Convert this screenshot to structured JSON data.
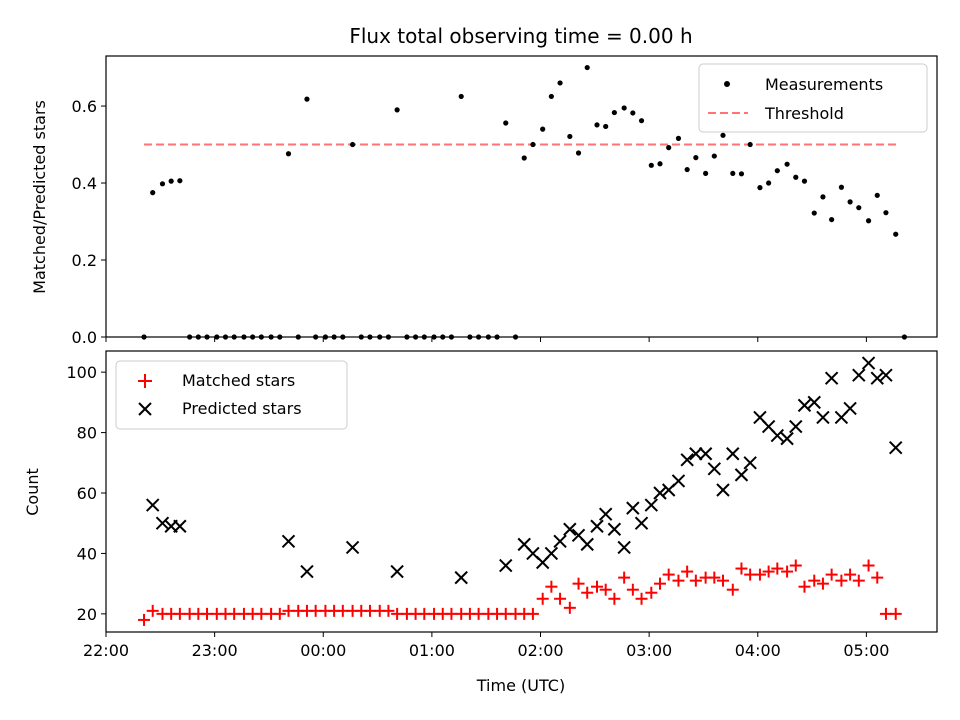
{
  "chart_data": [
    {
      "type": "scatter",
      "title": "Flux total observing time = 0.00 h",
      "xlabel": "",
      "ylabel": "Matched/Predicted stars",
      "xlim": [
        22.0,
        29.65
      ],
      "ylim": [
        0.0,
        0.73
      ],
      "yticks": [
        0.0,
        0.2,
        0.4,
        0.6
      ],
      "ytick_labels": [
        "0.0",
        "0.2",
        "0.4",
        "0.6"
      ],
      "xticks": [
        22,
        23,
        24,
        25,
        26,
        27,
        28,
        29
      ],
      "legend_position": "upper-right",
      "threshold": 0.5,
      "threshold_range": [
        22.35,
        29.3
      ],
      "legend": {
        "measurements": "Measurements",
        "threshold": "Threshold"
      },
      "series": [
        {
          "name": "Measurements",
          "color": "#000000",
          "points": [
            [
              22.35,
              0.0
            ],
            [
              22.43,
              0.375
            ],
            [
              22.52,
              0.398
            ],
            [
              22.6,
              0.405
            ],
            [
              22.68,
              0.406
            ],
            [
              22.77,
              0.0
            ],
            [
              22.85,
              0.0
            ],
            [
              22.93,
              0.0
            ],
            [
              23.02,
              0.0
            ],
            [
              23.1,
              0.0
            ],
            [
              23.18,
              0.0
            ],
            [
              23.27,
              0.0
            ],
            [
              23.35,
              0.0
            ],
            [
              23.43,
              0.0
            ],
            [
              23.52,
              0.0
            ],
            [
              23.6,
              0.0
            ],
            [
              23.68,
              0.476
            ],
            [
              23.77,
              0.0
            ],
            [
              23.85,
              0.618
            ],
            [
              23.93,
              0.0
            ],
            [
              24.02,
              0.0
            ],
            [
              24.1,
              0.0
            ],
            [
              24.18,
              0.0
            ],
            [
              24.27,
              0.5
            ],
            [
              24.35,
              0.0
            ],
            [
              24.43,
              0.0
            ],
            [
              24.52,
              0.0
            ],
            [
              24.6,
              0.0
            ],
            [
              24.68,
              0.59
            ],
            [
              24.77,
              0.0
            ],
            [
              24.85,
              0.0
            ],
            [
              24.93,
              0.0
            ],
            [
              25.02,
              0.0
            ],
            [
              25.1,
              0.0
            ],
            [
              25.18,
              0.0
            ],
            [
              25.27,
              0.625
            ],
            [
              25.35,
              0.0
            ],
            [
              25.43,
              0.0
            ],
            [
              25.52,
              0.0
            ],
            [
              25.6,
              0.0
            ],
            [
              25.68,
              0.556
            ],
            [
              25.77,
              0.0
            ],
            [
              25.85,
              0.465
            ],
            [
              25.93,
              0.5
            ],
            [
              26.02,
              0.54
            ],
            [
              26.1,
              0.625
            ],
            [
              26.18,
              0.66
            ],
            [
              26.27,
              0.521
            ],
            [
              26.35,
              0.478
            ],
            [
              26.43,
              0.7
            ],
            [
              26.52,
              0.551
            ],
            [
              26.6,
              0.547
            ],
            [
              26.68,
              0.583
            ],
            [
              26.77,
              0.595
            ],
            [
              26.85,
              0.582
            ],
            [
              26.93,
              0.562
            ],
            [
              27.02,
              0.446
            ],
            [
              27.1,
              0.45
            ],
            [
              27.18,
              0.492
            ],
            [
              27.27,
              0.516
            ],
            [
              27.35,
              0.435
            ],
            [
              27.43,
              0.466
            ],
            [
              27.52,
              0.425
            ],
            [
              27.6,
              0.47
            ],
            [
              27.68,
              0.524
            ],
            [
              27.77,
              0.425
            ],
            [
              27.85,
              0.424
            ],
            [
              27.93,
              0.5
            ],
            [
              28.02,
              0.388
            ],
            [
              28.1,
              0.4
            ],
            [
              28.18,
              0.432
            ],
            [
              28.27,
              0.449
            ],
            [
              28.35,
              0.415
            ],
            [
              28.43,
              0.405
            ],
            [
              28.52,
              0.322
            ],
            [
              28.6,
              0.364
            ],
            [
              28.68,
              0.305
            ],
            [
              28.77,
              0.389
            ],
            [
              28.85,
              0.351
            ],
            [
              28.93,
              0.336
            ],
            [
              29.02,
              0.302
            ],
            [
              29.1,
              0.368
            ],
            [
              29.18,
              0.323
            ],
            [
              29.27,
              0.267
            ],
            [
              29.35,
              0.0
            ]
          ]
        }
      ]
    },
    {
      "type": "scatter",
      "title": "",
      "xlabel": "Time (UTC)",
      "ylabel": "Count",
      "xlim": [
        22.0,
        29.65
      ],
      "ylim": [
        14.0,
        107.0
      ],
      "yticks": [
        20,
        40,
        60,
        80,
        100
      ],
      "ytick_labels": [
        "20",
        "40",
        "60",
        "80",
        "100"
      ],
      "xticks": [
        22,
        23,
        24,
        25,
        26,
        27,
        28,
        29
      ],
      "xtick_labels": [
        "22:00",
        "23:00",
        "00:00",
        "01:00",
        "02:00",
        "03:00",
        "04:00",
        "05:00"
      ],
      "legend_position": "upper-left",
      "legend": {
        "matched": "Matched stars",
        "predicted": "Predicted stars"
      },
      "series": [
        {
          "name": "Matched stars",
          "color": "#ff0000",
          "marker": "+",
          "points": [
            [
              22.35,
              18
            ],
            [
              22.43,
              21
            ],
            [
              22.52,
              20
            ],
            [
              22.6,
              20
            ],
            [
              22.68,
              20
            ],
            [
              22.77,
              20
            ],
            [
              22.85,
              20
            ],
            [
              22.93,
              20
            ],
            [
              23.02,
              20
            ],
            [
              23.1,
              20
            ],
            [
              23.18,
              20
            ],
            [
              23.27,
              20
            ],
            [
              23.35,
              20
            ],
            [
              23.43,
              20
            ],
            [
              23.52,
              20
            ],
            [
              23.6,
              20
            ],
            [
              23.68,
              21
            ],
            [
              23.77,
              21
            ],
            [
              23.85,
              21
            ],
            [
              23.93,
              21
            ],
            [
              24.02,
              21
            ],
            [
              24.1,
              21
            ],
            [
              24.18,
              21
            ],
            [
              24.27,
              21
            ],
            [
              24.35,
              21
            ],
            [
              24.43,
              21
            ],
            [
              24.52,
              21
            ],
            [
              24.6,
              21
            ],
            [
              24.68,
              20
            ],
            [
              24.77,
              20
            ],
            [
              24.85,
              20
            ],
            [
              24.93,
              20
            ],
            [
              25.02,
              20
            ],
            [
              25.1,
              20
            ],
            [
              25.18,
              20
            ],
            [
              25.27,
              20
            ],
            [
              25.35,
              20
            ],
            [
              25.43,
              20
            ],
            [
              25.52,
              20
            ],
            [
              25.6,
              20
            ],
            [
              25.68,
              20
            ],
            [
              25.77,
              20
            ],
            [
              25.85,
              20
            ],
            [
              25.93,
              20
            ],
            [
              26.02,
              25
            ],
            [
              26.1,
              29
            ],
            [
              26.18,
              25
            ],
            [
              26.27,
              22
            ],
            [
              26.35,
              30
            ],
            [
              26.43,
              27
            ],
            [
              26.52,
              29
            ],
            [
              26.6,
              28
            ],
            [
              26.68,
              25
            ],
            [
              26.77,
              32
            ],
            [
              26.85,
              28
            ],
            [
              26.93,
              25
            ],
            [
              27.02,
              27
            ],
            [
              27.1,
              30
            ],
            [
              27.18,
              33
            ],
            [
              27.27,
              31
            ],
            [
              27.35,
              34
            ],
            [
              27.43,
              31
            ],
            [
              27.52,
              32
            ],
            [
              27.6,
              32
            ],
            [
              27.68,
              31
            ],
            [
              27.77,
              28
            ],
            [
              27.85,
              35
            ],
            [
              27.93,
              33
            ],
            [
              28.02,
              33
            ],
            [
              28.1,
              34
            ],
            [
              28.18,
              35
            ],
            [
              28.27,
              34
            ],
            [
              28.35,
              36
            ],
            [
              28.43,
              29
            ],
            [
              28.52,
              31
            ],
            [
              28.6,
              30
            ],
            [
              28.68,
              33
            ],
            [
              28.77,
              31
            ],
            [
              28.85,
              33
            ],
            [
              28.93,
              31
            ],
            [
              29.02,
              36
            ],
            [
              29.1,
              32
            ],
            [
              29.18,
              20
            ],
            [
              29.27,
              20
            ]
          ]
        },
        {
          "name": "Predicted stars",
          "color": "#000000",
          "marker": "x",
          "points": [
            [
              22.43,
              56
            ],
            [
              22.52,
              50
            ],
            [
              22.6,
              49
            ],
            [
              22.68,
              49
            ],
            [
              23.68,
              44
            ],
            [
              23.85,
              34
            ],
            [
              24.27,
              42
            ],
            [
              24.68,
              34
            ],
            [
              25.27,
              32
            ],
            [
              25.68,
              36
            ],
            [
              25.85,
              43
            ],
            [
              25.93,
              40
            ],
            [
              26.02,
              37
            ],
            [
              26.1,
              40
            ],
            [
              26.18,
              44
            ],
            [
              26.27,
              48
            ],
            [
              26.35,
              46
            ],
            [
              26.43,
              43
            ],
            [
              26.52,
              49
            ],
            [
              26.6,
              53
            ],
            [
              26.68,
              48
            ],
            [
              26.77,
              42
            ],
            [
              26.85,
              55
            ],
            [
              26.93,
              50
            ],
            [
              27.02,
              56
            ],
            [
              27.1,
              60
            ],
            [
              27.18,
              61
            ],
            [
              27.27,
              64
            ],
            [
              27.35,
              71
            ],
            [
              27.43,
              73
            ],
            [
              27.52,
              73
            ],
            [
              27.6,
              68
            ],
            [
              27.68,
              61
            ],
            [
              27.77,
              73
            ],
            [
              27.85,
              66
            ],
            [
              27.93,
              70
            ],
            [
              28.02,
              85
            ],
            [
              28.1,
              82
            ],
            [
              28.18,
              79
            ],
            [
              28.27,
              78
            ],
            [
              28.35,
              82
            ],
            [
              28.43,
              89
            ],
            [
              28.52,
              90
            ],
            [
              28.6,
              85
            ],
            [
              28.68,
              98
            ],
            [
              28.77,
              85
            ],
            [
              28.85,
              88
            ],
            [
              28.93,
              99
            ],
            [
              29.02,
              103
            ],
            [
              29.1,
              98
            ],
            [
              29.18,
              99
            ],
            [
              29.27,
              75
            ]
          ]
        }
      ]
    }
  ]
}
